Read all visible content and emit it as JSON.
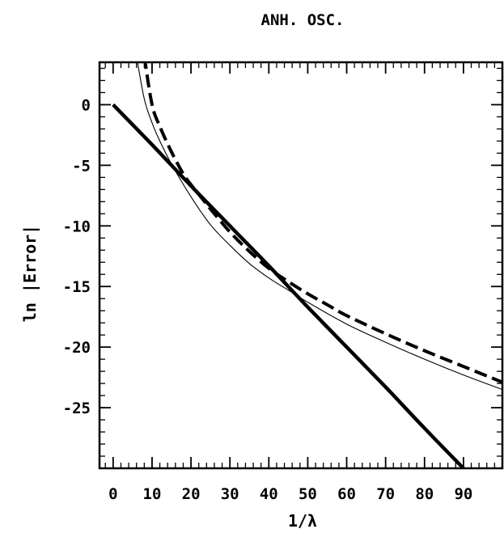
{
  "chart_data": {
    "type": "line",
    "title": "ANH. OSC.",
    "xlabel": "1/λ",
    "ylabel": "ln |Error|",
    "xlim": [
      -3.5,
      100
    ],
    "ylim": [
      -30,
      3.5
    ],
    "xticks": [
      0,
      10,
      20,
      30,
      40,
      50,
      60,
      70,
      80,
      90
    ],
    "yticks": [
      0,
      -5,
      -10,
      -15,
      -20,
      -25
    ],
    "x_minor_step": 2,
    "y_minor_step": 1,
    "grid": false,
    "legend": "none",
    "series": [
      {
        "style": "solid-thick",
        "x": [
          0,
          10,
          20,
          30,
          40,
          50,
          60,
          70,
          80,
          90
        ],
        "y": [
          0,
          -3.3,
          -6.7,
          -10.0,
          -13.3,
          -16.7,
          -20.0,
          -23.3,
          -26.7,
          -30.0
        ]
      },
      {
        "style": "dashed",
        "x": [
          8,
          10,
          12,
          15,
          18,
          20,
          23,
          25,
          30,
          35,
          40,
          45,
          50,
          55,
          60,
          70,
          80,
          90,
          100
        ],
        "y": [
          4.0,
          0.0,
          -1.8,
          -3.9,
          -5.7,
          -6.6,
          -7.8,
          -8.6,
          -10.5,
          -12.1,
          -13.5,
          -14.6,
          -15.6,
          -16.5,
          -17.4,
          -18.9,
          -20.3,
          -21.6,
          -22.9
        ]
      },
      {
        "style": "thin",
        "x": [
          6,
          8,
          10,
          12,
          15,
          20,
          25,
          30,
          35,
          40,
          45,
          50,
          60,
          70,
          80,
          90,
          100
        ],
        "y": [
          4.0,
          0.5,
          -1.5,
          -3.0,
          -4.9,
          -7.6,
          -9.9,
          -11.6,
          -13.1,
          -14.3,
          -15.3,
          -16.3,
          -18.1,
          -19.6,
          -21.0,
          -22.3,
          -23.5
        ]
      }
    ]
  }
}
